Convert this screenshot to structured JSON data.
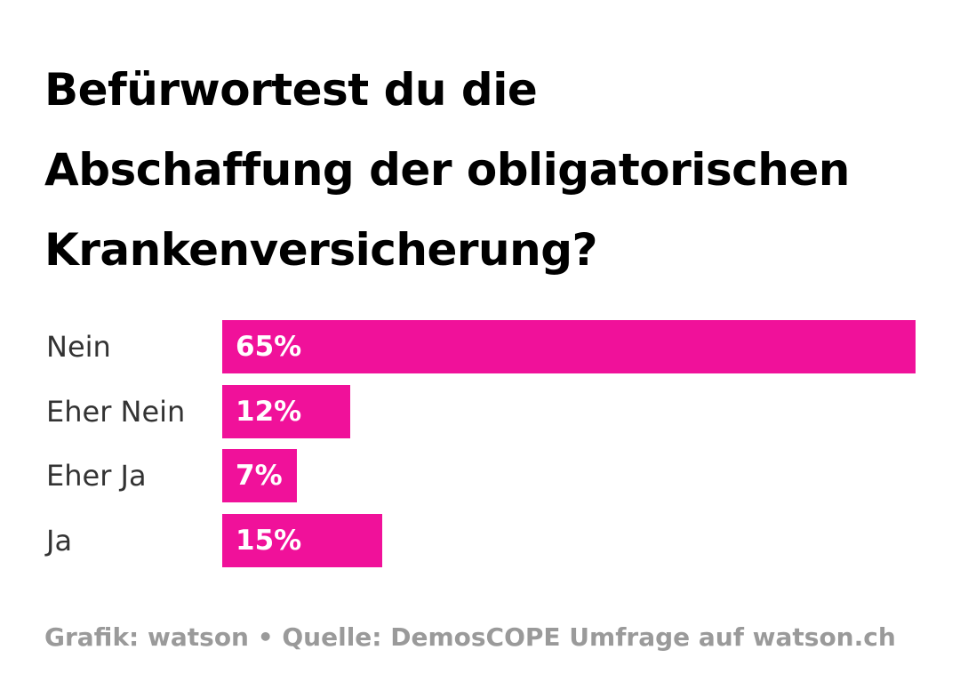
{
  "title_lines": [
    "Befürwortest du die",
    "Abschaffung der obligatorischen",
    "Krankenversicherung?"
  ],
  "footer": "Grafik: watson • Quelle: DemosCOPE Umfrage auf watson.ch",
  "colors": {
    "bar": "#f0119a",
    "title": "#000000",
    "label": "#333333",
    "footer": "#9a9a9a"
  },
  "chart_data": {
    "type": "bar",
    "orientation": "horizontal",
    "title": "Befürwortest du die Abschaffung der obligatorischen Krankenversicherung?",
    "categories": [
      "Nein",
      "Eher Nein",
      "Eher Ja",
      "Ja"
    ],
    "values": [
      65,
      12,
      7,
      15
    ],
    "value_labels": [
      "65%",
      "12%",
      "7%",
      "15%"
    ],
    "unit": "%",
    "xlim": [
      0,
      65
    ],
    "grid": false,
    "legend": "none"
  }
}
